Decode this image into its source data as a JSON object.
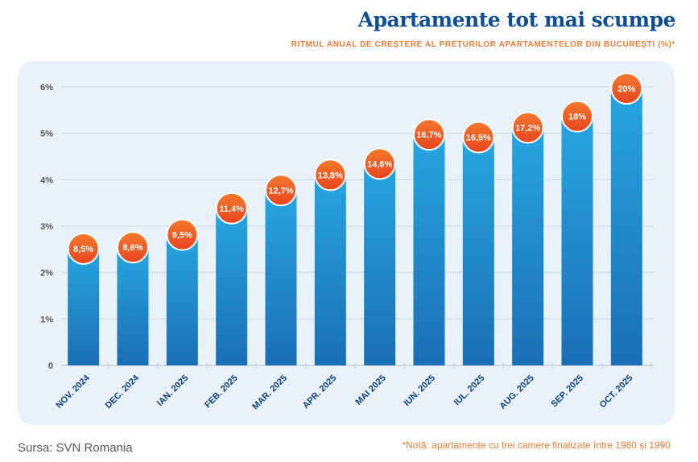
{
  "chart_data": {
    "type": "bar",
    "title": "Apartamente tot mai scumpe",
    "subtitle": "RITMUL ANUAL DE CREȘTERE AL PREȚURILOR APARTAMENTELOR DIN BUCUREȘTI (%)*",
    "categories": [
      "NOV. 2024",
      "DEC. 2024",
      "IAN. 2025",
      "FEB. 2025",
      "MAR. 2025",
      "APR. 2025",
      "MAI 2025",
      "IUN. 2025",
      "IUL. 2025",
      "AUG. 2025",
      "SEP. 2025",
      "OCT. 2025"
    ],
    "values": [
      8.5,
      8.6,
      9.5,
      11.4,
      12.7,
      13.8,
      14.6,
      16.7,
      16.5,
      17.2,
      18,
      20
    ],
    "value_labels": [
      "8,5%",
      "8,6%",
      "9,5%",
      "11,4%",
      "12,7%",
      "13,8%",
      "14,6%",
      "16,7%",
      "16,5%",
      "17,2%",
      "18%",
      "20%"
    ],
    "y_ticks": [
      "0",
      "1%",
      "2%",
      "3%",
      "4%",
      "5%",
      "6%"
    ],
    "ylim": [
      0,
      20
    ],
    "grid": true,
    "xlabel": "",
    "ylabel": "",
    "colors": {
      "bar_top": "#27a6e1",
      "bar_bottom": "#1a6fb5",
      "marker_top": "#f47a2c",
      "marker_bottom": "#e8431f"
    }
  },
  "footer": {
    "source": "Sursa: SVN Romania",
    "note": "*Notă: apartamente cu trei camere finalizate între 1980 și 1990"
  }
}
